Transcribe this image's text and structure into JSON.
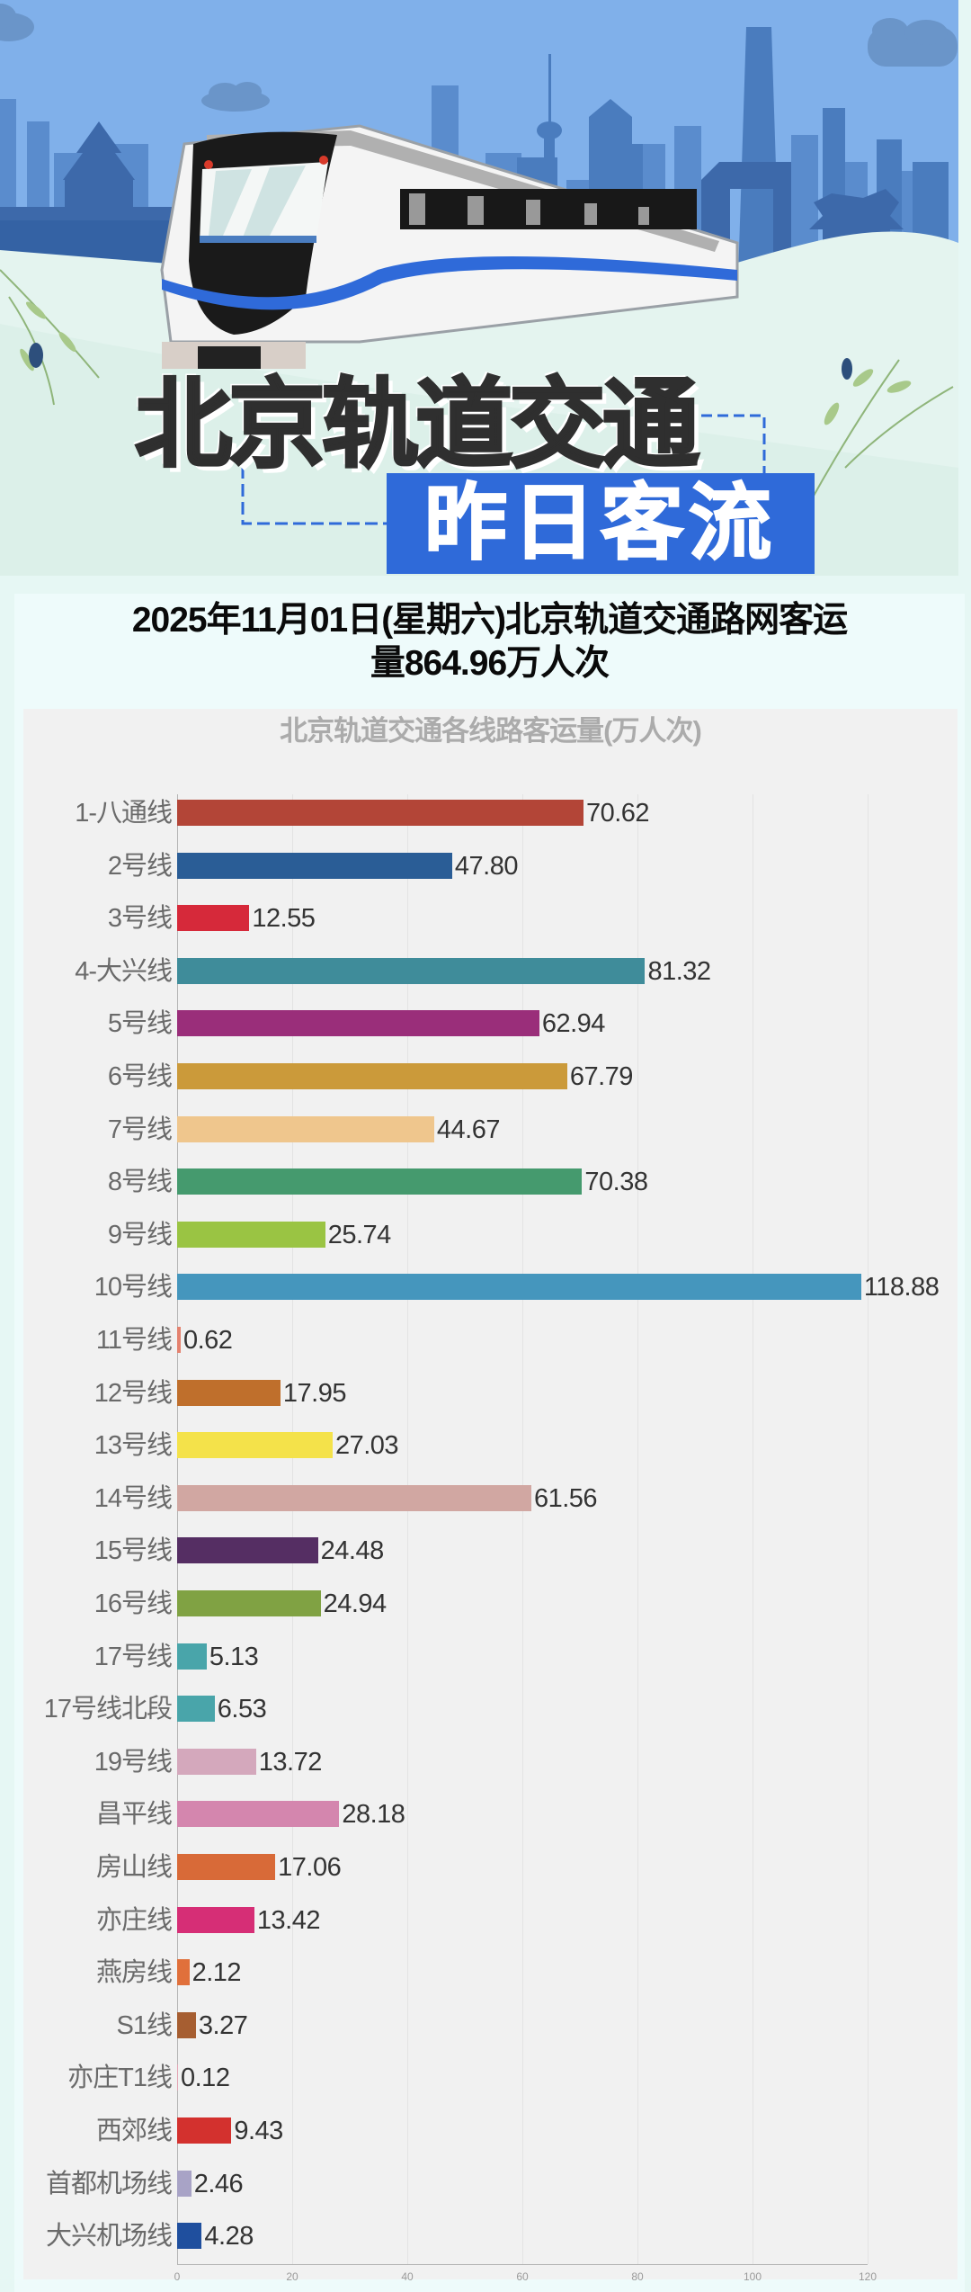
{
  "banner": {
    "title_main": "北京轨道交通",
    "title_sub": "昨日客流",
    "colors": {
      "sky": "#80b0ea",
      "skyline": "#4f7fc0",
      "skyline_dark": "#3d66a8",
      "accent_box": "#2f6ad9",
      "ground": "#e4f4ef"
    }
  },
  "summary": {
    "line1": "2025年11月01日(星期六)北京轨道交通路网客运",
    "line2": "量864.96万人次"
  },
  "chart_data": {
    "type": "bar",
    "orientation": "horizontal",
    "title": "北京轨道交通各线路客运量(万人次)",
    "xlabel": "",
    "ylabel": "",
    "xlim": [
      0,
      120
    ],
    "xticks": [
      0,
      20,
      40,
      60,
      80,
      100,
      120
    ],
    "grid": true,
    "legend": null,
    "categories": [
      "1-八通线",
      "2号线",
      "3号线",
      "4-大兴线",
      "5号线",
      "6号线",
      "7号线",
      "8号线",
      "9号线",
      "10号线",
      "11号线",
      "12号线",
      "13号线",
      "14号线",
      "15号线",
      "16号线",
      "17号线",
      "17号线北段",
      "19号线",
      "昌平线",
      "房山线",
      "亦庄线",
      "燕房线",
      "S1线",
      "亦庄T1线",
      "西郊线",
      "首都机场线",
      "大兴机场线"
    ],
    "values": [
      70.62,
      47.8,
      12.55,
      81.32,
      62.94,
      67.79,
      44.67,
      70.38,
      25.74,
      118.88,
      0.62,
      17.95,
      27.03,
      61.56,
      24.48,
      24.94,
      5.13,
      6.53,
      13.72,
      28.18,
      17.06,
      13.42,
      2.12,
      3.27,
      0.12,
      9.43,
      2.46,
      4.28
    ],
    "value_labels": [
      "70.62",
      "47.80",
      "12.55",
      "81.32",
      "62.94",
      "67.79",
      "44.67",
      "70.38",
      "25.74",
      "118.88",
      "0.62",
      "17.95",
      "27.03",
      "61.56",
      "24.48",
      "24.94",
      "5.13",
      "6.53",
      "13.72",
      "28.18",
      "17.06",
      "13.42",
      "2.12",
      "3.27",
      "0.12",
      "9.43",
      "2.46",
      "4.28"
    ],
    "colors": [
      "#b34537",
      "#2a5d96",
      "#d6293a",
      "#3f8c9a",
      "#9a2e7a",
      "#cb9a3a",
      "#efc68d",
      "#459a6e",
      "#9ac443",
      "#4596bd",
      "#e4826f",
      "#bf6f2c",
      "#f4e24a",
      "#d1a7a2",
      "#552e63",
      "#80a243",
      "#49a5aa",
      "#49a5aa",
      "#d4a8bc",
      "#d486ae",
      "#d86a38",
      "#d62e76",
      "#e0703b",
      "#a65e31",
      "#e3a3b3",
      "#d3312e",
      "#a8a3c6",
      "#1f4f9e"
    ]
  }
}
